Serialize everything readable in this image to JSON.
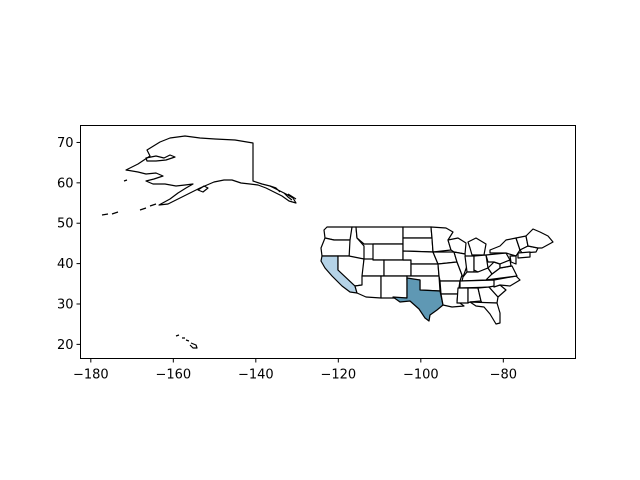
{
  "chart_data": {
    "type": "map",
    "region": "United States",
    "xlim": [
      -182.5,
      -62.5
    ],
    "ylim": [
      16.5,
      74.2
    ],
    "xticks": [
      -180,
      -160,
      -140,
      -120,
      -100,
      -80
    ],
    "yticks": [
      20,
      30,
      40,
      50,
      60,
      70
    ],
    "xtick_labels": [
      "−180",
      "−160",
      "−140",
      "−120",
      "−100",
      "−80"
    ],
    "ytick_labels": [
      "20",
      "30",
      "40",
      "50",
      "60",
      "70"
    ],
    "highlighted_states": [
      {
        "state": "Texas",
        "color": "#5f98b4"
      },
      {
        "state": "California",
        "color": "#b5d3e7"
      }
    ],
    "default_fill": "#ffffff",
    "edge_color": "#000000"
  }
}
